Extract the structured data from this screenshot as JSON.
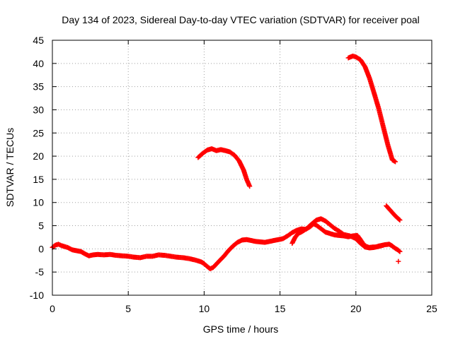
{
  "chart_data": {
    "type": "scatter",
    "title": "Day 134 of 2023, Sidereal Day-to-day VTEC variation (SDTVAR) for receiver poal",
    "xlabel": "GPS time / hours",
    "ylabel": "SDTVAR / TECUs",
    "xlim": [
      0,
      25
    ],
    "ylim": [
      -10,
      45
    ],
    "xticks": [
      0,
      5,
      10,
      15,
      20,
      25
    ],
    "yticks": [
      -10,
      -5,
      0,
      5,
      10,
      15,
      20,
      25,
      30,
      35,
      40,
      45
    ],
    "grid": true,
    "marker": "+",
    "series_color": "#ff0000",
    "series": [
      {
        "name": "main-trace",
        "x": [
          0.0,
          0.2,
          0.4,
          0.6,
          0.8,
          1.0,
          1.3,
          1.6,
          1.9,
          2.1,
          2.4,
          2.7,
          3.0,
          3.4,
          3.8,
          4.2,
          4.6,
          5.0,
          5.4,
          5.8,
          6.2,
          6.6,
          7.0,
          7.4,
          7.8,
          8.2,
          8.6,
          9.0,
          9.4,
          9.8,
          10.0,
          10.2,
          10.4,
          10.6,
          10.8,
          11.0,
          11.3,
          11.6,
          11.9,
          12.2,
          12.5,
          12.8,
          13.1,
          13.4,
          13.7,
          14.0,
          14.3,
          14.6,
          14.9,
          15.2,
          15.5,
          15.8,
          16.1,
          16.4,
          16.7,
          17.0,
          17.2,
          17.4,
          17.6,
          17.8,
          18.0,
          18.3,
          18.6,
          18.9,
          19.2,
          19.5,
          19.8,
          20.1,
          20.3,
          20.5,
          20.7,
          20.9,
          21.1,
          21.3,
          21.6,
          21.9,
          22.2,
          22.4,
          22.6,
          22.8,
          22.9
        ],
        "y": [
          0.3,
          0.8,
          1.0,
          0.7,
          0.5,
          0.3,
          -0.2,
          -0.4,
          -0.6,
          -1.0,
          -1.5,
          -1.3,
          -1.2,
          -1.3,
          -1.2,
          -1.4,
          -1.5,
          -1.6,
          -1.8,
          -1.9,
          -1.6,
          -1.6,
          -1.3,
          -1.4,
          -1.6,
          -1.8,
          -1.9,
          -2.1,
          -2.4,
          -2.8,
          -3.2,
          -3.8,
          -4.3,
          -4.0,
          -3.3,
          -2.6,
          -1.6,
          -0.4,
          0.6,
          1.4,
          1.9,
          2.0,
          1.8,
          1.6,
          1.5,
          1.4,
          1.6,
          1.8,
          2.0,
          2.2,
          2.8,
          3.5,
          4.0,
          4.3,
          4.2,
          4.8,
          5.4,
          5.1,
          4.6,
          4.1,
          3.6,
          3.3,
          3.0,
          2.9,
          2.8,
          2.6,
          2.8,
          2.9,
          2.0,
          1.0,
          0.5,
          0.3,
          0.4,
          0.4,
          0.6,
          0.9,
          1.0,
          0.6,
          0.1,
          -0.3,
          -0.6
        ]
      },
      {
        "name": "secondary-loops",
        "x": [
          15.8,
          16.0,
          16.2,
          16.5,
          16.8,
          17.1,
          17.4,
          17.7,
          18.0,
          18.3,
          18.6,
          18.9,
          19.2,
          19.6,
          20.0,
          20.3,
          20.6,
          20.9,
          21.2,
          21.5,
          21.8
        ],
        "y": [
          1.2,
          2.5,
          3.3,
          3.8,
          4.5,
          5.4,
          6.2,
          6.5,
          6.0,
          5.2,
          4.4,
          3.8,
          3.1,
          2.8,
          2.2,
          1.2,
          0.4,
          0.2,
          0.3,
          0.6,
          0.8
        ]
      },
      {
        "name": "segment-10h",
        "x": [
          9.6,
          9.9,
          10.2,
          10.5,
          10.8,
          11.1,
          11.4,
          11.7,
          12.0,
          12.3,
          12.6,
          12.8,
          13.0
        ],
        "y": [
          19.7,
          20.6,
          21.3,
          21.6,
          21.2,
          21.4,
          21.2,
          20.9,
          20.2,
          19.0,
          17.0,
          15.0,
          13.5
        ]
      },
      {
        "name": "segment-20h",
        "x": [
          19.5,
          19.8,
          20.0,
          20.3,
          20.6,
          20.9,
          21.2,
          21.5,
          21.8,
          22.1,
          22.4,
          22.6
        ],
        "y": [
          41.2,
          41.6,
          41.4,
          40.8,
          39.3,
          36.8,
          33.6,
          30.3,
          26.4,
          22.5,
          19.2,
          18.8
        ]
      },
      {
        "name": "segment-22h",
        "x": [
          22.0,
          22.3,
          22.6,
          22.9
        ],
        "y": [
          9.3,
          8.2,
          7.1,
          6.2
        ]
      },
      {
        "name": "isolated-point",
        "x": [
          22.8
        ],
        "y": [
          -2.7
        ]
      }
    ]
  }
}
